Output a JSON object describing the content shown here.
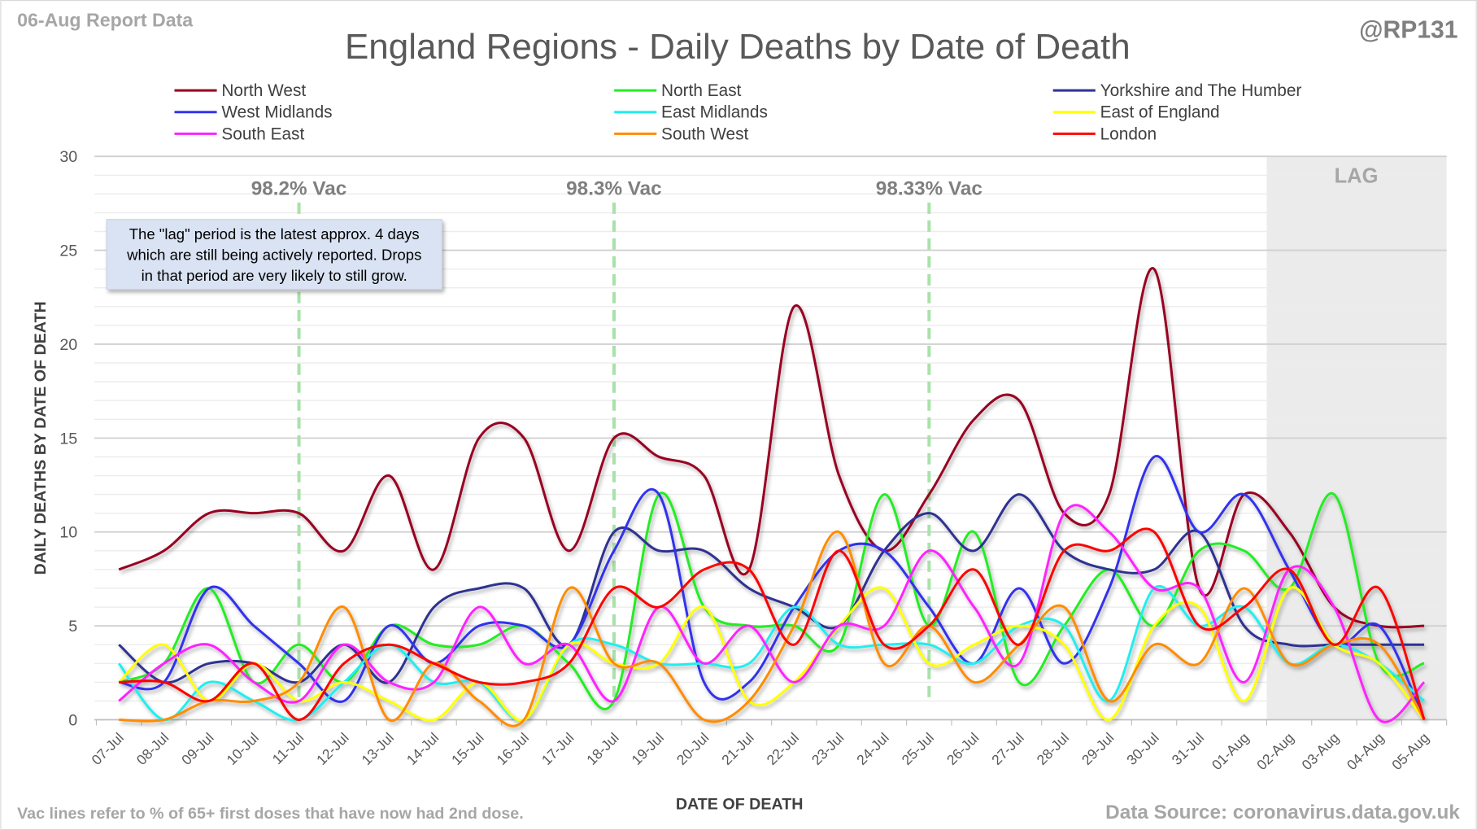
{
  "header": {
    "report_date": "06-Aug Report Data",
    "handle": "@RP131"
  },
  "footer": {
    "note": "Vac lines refer to % of 65+ first doses that have now had 2nd dose.",
    "source": "Data Source: coronavirus.data.gov.uk"
  },
  "annotation": {
    "lines": [
      "The \"lag\" period is the latest approx. 4 days",
      "which are still being actively reported.  Drops",
      "in that period are very likely to still grow."
    ]
  },
  "chart_data": {
    "type": "line",
    "title": "England Regions - Daily Deaths by Date of Death",
    "xlabel": "DATE OF DEATH",
    "ylabel": "DAILY DEATHS BY DATE OF DEATH",
    "ylim": [
      0,
      30
    ],
    "yticks": [
      "0",
      "5",
      "10",
      "15",
      "20",
      "25",
      "30"
    ],
    "grid": true,
    "legend_position": "top",
    "lag_label": "LAG",
    "lag_start": "02-Aug",
    "x": [
      "07-Jul",
      "08-Jul",
      "09-Jul",
      "10-Jul",
      "11-Jul",
      "12-Jul",
      "13-Jul",
      "14-Jul",
      "15-Jul",
      "16-Jul",
      "17-Jul",
      "18-Jul",
      "19-Jul",
      "20-Jul",
      "21-Jul",
      "22-Jul",
      "23-Jul",
      "24-Jul",
      "25-Jul",
      "26-Jul",
      "27-Jul",
      "28-Jul",
      "29-Jul",
      "30-Jul",
      "31-Jul",
      "01-Aug",
      "02-Aug",
      "03-Aug",
      "04-Aug",
      "05-Aug"
    ],
    "vac_lines": [
      {
        "date": "11-Jul",
        "label": "98.2% Vac"
      },
      {
        "date": "18-Jul",
        "label": "98.3% Vac"
      },
      {
        "date": "25-Jul",
        "label": "98.33% Vac"
      }
    ],
    "series": [
      {
        "name": "North West",
        "color": "#990022",
        "values": [
          8,
          9,
          11,
          11,
          11,
          9,
          13,
          8,
          15,
          15,
          9,
          15,
          14,
          13,
          8,
          22,
          13,
          9,
          12,
          16,
          17,
          11,
          12,
          24,
          7,
          12,
          10,
          6,
          5,
          5
        ]
      },
      {
        "name": "North East",
        "color": "#22ee22",
        "values": [
          2,
          3,
          7,
          2,
          4,
          2,
          5,
          4,
          4,
          5,
          3,
          1,
          12,
          6,
          5,
          5,
          4,
          12,
          5,
          10,
          2,
          5,
          8,
          5,
          9,
          9,
          7,
          12,
          3,
          3
        ]
      },
      {
        "name": "Yorkshire and The Humber",
        "color": "#2e3192",
        "values": [
          4,
          2,
          3,
          3,
          2,
          4,
          2,
          6,
          7,
          7,
          4,
          10,
          9,
          9,
          7,
          6,
          5,
          9,
          11,
          9,
          12,
          9,
          8,
          8,
          10,
          5,
          4,
          4,
          4,
          4
        ]
      },
      {
        "name": "West Midlands",
        "color": "#3333ee",
        "values": [
          2,
          2,
          7,
          5,
          3,
          1,
          5,
          3,
          5,
          5,
          4,
          9,
          12,
          2,
          2,
          6,
          9,
          9,
          6,
          3,
          7,
          3,
          7,
          14,
          10,
          12,
          8,
          4,
          5,
          0
        ]
      },
      {
        "name": "East Midlands",
        "color": "#22eeee",
        "values": [
          3,
          0,
          2,
          1,
          0,
          2,
          4,
          2,
          2,
          0,
          4,
          4,
          3,
          3,
          3,
          6,
          4,
          4,
          4,
          3,
          5,
          5,
          1,
          7,
          5,
          6,
          3,
          4,
          3,
          1
        ]
      },
      {
        "name": "East of England",
        "color": "#ffff00",
        "values": [
          2,
          4,
          1,
          3,
          1,
          2,
          1,
          0,
          2,
          0,
          4,
          3,
          3,
          6,
          1,
          2,
          5,
          7,
          3,
          4,
          5,
          4,
          0,
          5,
          6,
          1,
          7,
          4,
          3,
          0
        ]
      },
      {
        "name": "South East",
        "color": "#ff22ff",
        "values": [
          1,
          3,
          4,
          2,
          1,
          4,
          2,
          2,
          6,
          3,
          4,
          1,
          6,
          3,
          5,
          2,
          5,
          5,
          9,
          6,
          3,
          11,
          10,
          7,
          7,
          2,
          8,
          6,
          0,
          2
        ]
      },
      {
        "name": "South West",
        "color": "#ff8c00",
        "values": [
          0,
          0,
          1,
          1,
          2,
          6,
          0,
          3,
          1,
          0,
          7,
          3,
          3,
          0,
          1,
          5,
          10,
          3,
          5,
          2,
          4,
          6,
          1,
          4,
          3,
          7,
          3,
          4,
          4,
          0
        ]
      },
      {
        "name": "London",
        "color": "#ff0000",
        "values": [
          2,
          2,
          1,
          3,
          0,
          3,
          4,
          3,
          2,
          2,
          3,
          7,
          6,
          8,
          8,
          4,
          9,
          4,
          5,
          8,
          4,
          9,
          9,
          10,
          5,
          6,
          8,
          4,
          7,
          0
        ]
      }
    ]
  }
}
